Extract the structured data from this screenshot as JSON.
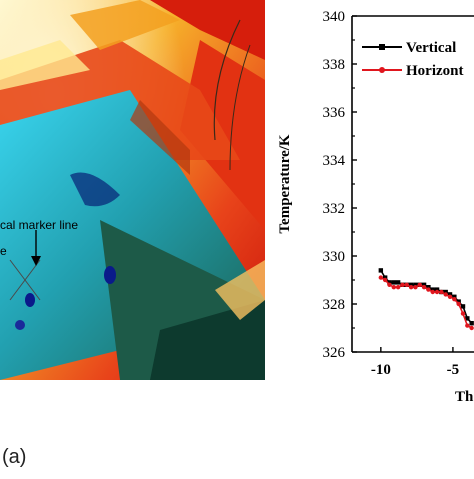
{
  "thermal_image": {
    "annotations": {
      "marker_line": "cal marker line",
      "other_label": "e"
    },
    "colors": {
      "hot_red": "#e01b0c",
      "warm_orange": "#f08a1a",
      "hot_white": "#fff6c8",
      "cool_cyan": "#28c8e6",
      "cool_teal": "#1d7a6c",
      "dark_green": "#1a4a3a"
    }
  },
  "panel_label": "(a)",
  "chart_data": {
    "type": "line",
    "xlabel": "Th",
    "ylabel": "Temperature/K",
    "xlim": [
      -12,
      0
    ],
    "ylim": [
      326,
      340
    ],
    "x_ticks": [
      -10,
      -5
    ],
    "x_tick_labels": [
      "-10",
      "-5"
    ],
    "y_ticks": [
      326,
      328,
      330,
      332,
      334,
      336,
      338,
      340
    ],
    "y_tick_labels": [
      "326",
      "328",
      "330",
      "332",
      "334",
      "336",
      "338",
      "340"
    ],
    "legend_placement": "top-right",
    "grid": false,
    "series": [
      {
        "name": "Vertical",
        "color": "#000000",
        "marker": "square",
        "x": [
          -10,
          -9.7,
          -9.4,
          -9.1,
          -8.8,
          -8.5,
          -8.2,
          -7.9,
          -7.6,
          -7.3,
          -7,
          -6.7,
          -6.4,
          -6.1,
          -5.8,
          -5.5,
          -5.2,
          -4.9,
          -4.6,
          -4.3,
          -4.0,
          -3.7
        ],
        "y": [
          329.4,
          329.1,
          328.9,
          328.9,
          328.9,
          328.8,
          328.8,
          328.8,
          328.8,
          328.8,
          328.8,
          328.7,
          328.6,
          328.6,
          328.5,
          328.5,
          328.4,
          328.3,
          328.1,
          327.9,
          327.4,
          327.2
        ]
      },
      {
        "name": "Horizont",
        "color": "#e0161e",
        "marker": "circle",
        "x": [
          -10,
          -9.7,
          -9.4,
          -9.1,
          -8.8,
          -8.5,
          -8.2,
          -7.9,
          -7.6,
          -7.3,
          -7,
          -6.7,
          -6.4,
          -6.1,
          -5.8,
          -5.5,
          -5.2,
          -4.9,
          -4.6,
          -4.3,
          -4.0,
          -3.7
        ],
        "y": [
          329.1,
          329.0,
          328.8,
          328.7,
          328.7,
          328.8,
          328.8,
          328.7,
          328.7,
          328.8,
          328.7,
          328.6,
          328.5,
          328.5,
          328.5,
          328.4,
          328.3,
          328.2,
          328.0,
          327.6,
          327.1,
          327.0
        ]
      }
    ]
  }
}
